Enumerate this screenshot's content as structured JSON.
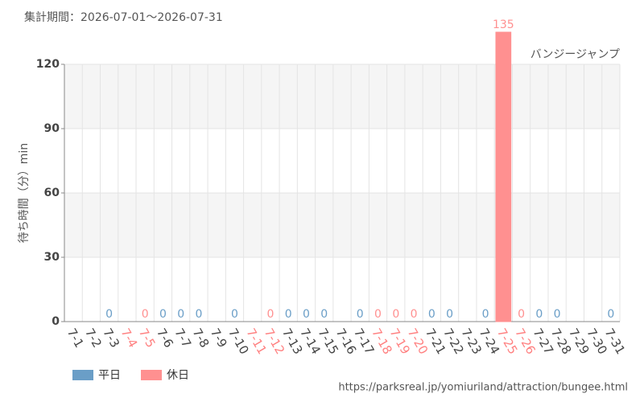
{
  "chart_data": {
    "type": "bar",
    "period": "集計期間：2026-07-01～2026-07-31",
    "title": "バンジージャンプ",
    "y_label": "待ち時間（分）min",
    "source": "https://parksreal.jp/yomiuriland/attraction/bungee.html",
    "categories": [
      "7-1",
      "7-2",
      "7-3",
      "7-4",
      "7-5",
      "7-6",
      "7-7",
      "7-8",
      "7-9",
      "7-10",
      "7-11",
      "7-12",
      "7-13",
      "7-14",
      "7-15",
      "7-16",
      "7-17",
      "7-18",
      "7-19",
      "7-20",
      "7-21",
      "7-22",
      "7-23",
      "7-24",
      "7-25",
      "7-26",
      "7-27",
      "7-28",
      "7-29",
      "7-30",
      "7-31"
    ],
    "category_colors": [
      "#444",
      "#444",
      "#444",
      "#ff8080",
      "#ff8080",
      "#444",
      "#444",
      "#444",
      "#444",
      "#444",
      "#ff8080",
      "#ff8080",
      "#444",
      "#444",
      "#444",
      "#444",
      "#444",
      "#ff8080",
      "#ff8080",
      "#ff8080",
      "#444",
      "#444",
      "#444",
      "#444",
      "#ff8080",
      "#ff8080",
      "#444",
      "#444",
      "#444",
      "#444",
      "#444"
    ],
    "series": [
      {
        "name": "平日",
        "color": "#6a9ec7",
        "values": [
          null,
          null,
          0,
          null,
          null,
          0,
          0,
          0,
          null,
          0,
          null,
          null,
          0,
          0,
          0,
          null,
          0,
          null,
          null,
          null,
          0,
          0,
          null,
          0,
          null,
          null,
          0,
          0,
          null,
          null,
          0
        ]
      },
      {
        "name": "休日",
        "color": "#ff9090",
        "values": [
          null,
          null,
          null,
          null,
          0,
          null,
          null,
          null,
          null,
          null,
          null,
          0,
          null,
          null,
          null,
          null,
          null,
          0,
          0,
          0,
          null,
          null,
          null,
          null,
          135,
          0,
          null,
          null,
          null,
          null,
          null
        ]
      }
    ],
    "ylim": [
      0,
      120
    ],
    "yticks": [
      0,
      30,
      60,
      90,
      120
    ],
    "grid": true
  }
}
